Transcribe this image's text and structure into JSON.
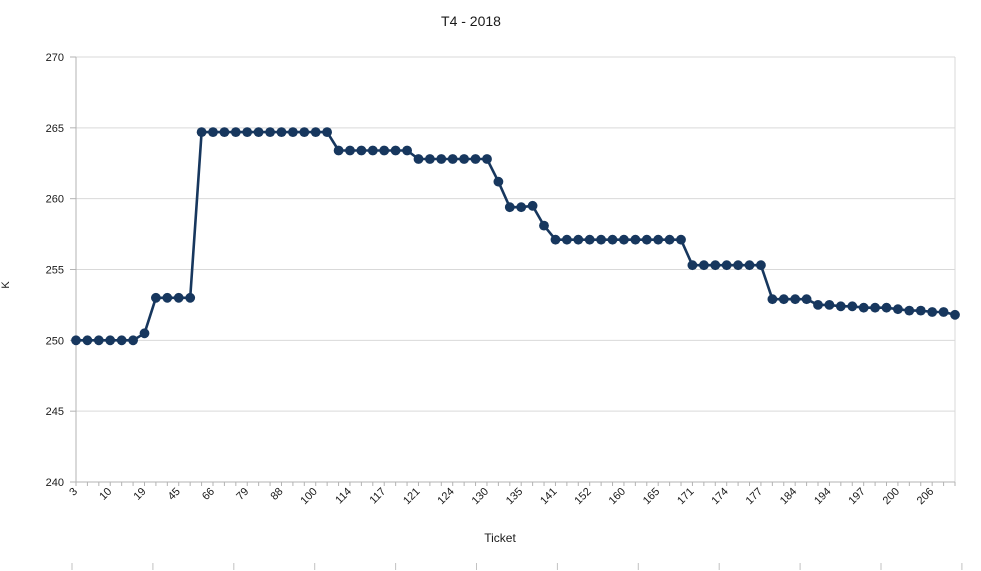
{
  "header": {
    "title": "T4 - 2018"
  },
  "chart_data": {
    "type": "line",
    "title": "T4 - 2018",
    "xlabel": "Ticket",
    "ylabel": "K",
    "ylim": [
      240,
      270
    ],
    "yticks": [
      240,
      245,
      250,
      255,
      260,
      265,
      270
    ],
    "x_tick_labels": [
      "3",
      "10",
      "19",
      "45",
      "66",
      "79",
      "88",
      "100",
      "114",
      "117",
      "121",
      "124",
      "130",
      "135",
      "141",
      "152",
      "160",
      "165",
      "171",
      "174",
      "177",
      "184",
      "194",
      "197",
      "200",
      "206"
    ],
    "label_every": 3,
    "values": [
      250,
      250,
      250,
      250,
      250,
      250,
      250.5,
      253,
      253,
      253,
      253,
      264.7,
      264.7,
      264.7,
      264.7,
      264.7,
      264.7,
      264.7,
      264.7,
      264.7,
      264.7,
      264.7,
      264.7,
      263.4,
      263.4,
      263.4,
      263.4,
      263.4,
      263.4,
      263.4,
      262.8,
      262.8,
      262.8,
      262.8,
      262.8,
      262.8,
      262.8,
      261.2,
      259.4,
      259.4,
      259.5,
      258.1,
      257.1,
      257.1,
      257.1,
      257.1,
      257.1,
      257.1,
      257.1,
      257.1,
      257.1,
      257.1,
      257.1,
      257.1,
      255.3,
      255.3,
      255.3,
      255.3,
      255.3,
      255.3,
      255.3,
      252.9,
      252.9,
      252.9,
      252.9,
      252.5,
      252.5,
      252.4,
      252.4,
      252.3,
      252.3,
      252.3,
      252.2,
      252.1,
      252.1,
      252.0,
      252.0,
      251.8
    ],
    "grid": "horizontal",
    "legend": "none",
    "marker": "circle"
  },
  "colors": {
    "line": "#17375E",
    "marker": "#17375E",
    "grid": "#d9d9d9",
    "axis": "#b3b3b3",
    "text": "#1a1a1a",
    "background": "#ffffff"
  }
}
